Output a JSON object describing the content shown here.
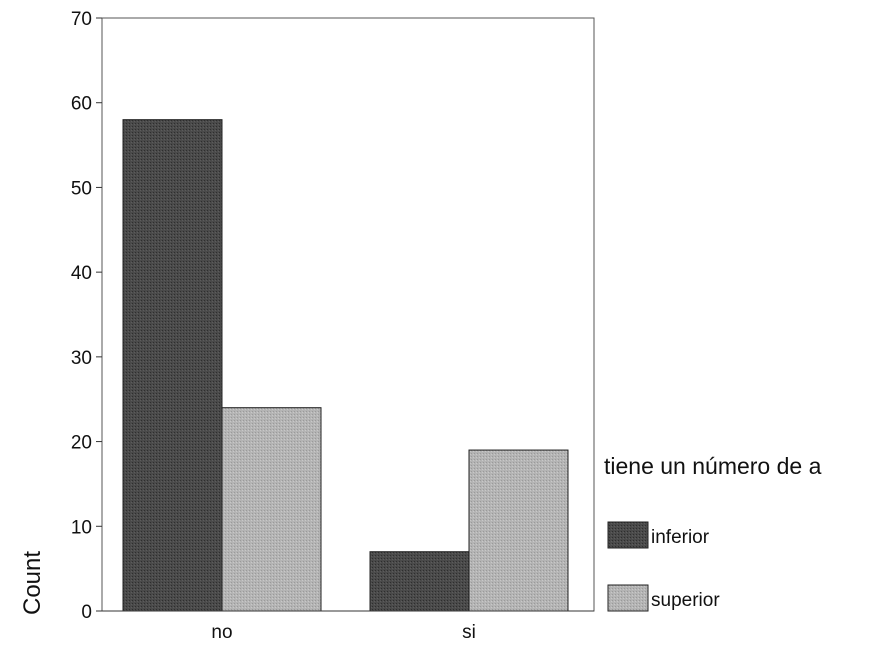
{
  "chart_data": {
    "type": "bar",
    "categories": [
      "no",
      "si"
    ],
    "series": [
      {
        "name": "inferior",
        "values": [
          58,
          7
        ],
        "color": "#4a4a4a"
      },
      {
        "name": "superior",
        "values": [
          24,
          19
        ],
        "color": "#b4b4b4"
      }
    ],
    "ylabel": "Count",
    "ylim": [
      0,
      70
    ],
    "yticks": [
      0,
      10,
      20,
      30,
      40,
      50,
      60,
      70
    ],
    "legend": {
      "title": "tiene un número de a",
      "position": "right"
    },
    "grid": false
  }
}
